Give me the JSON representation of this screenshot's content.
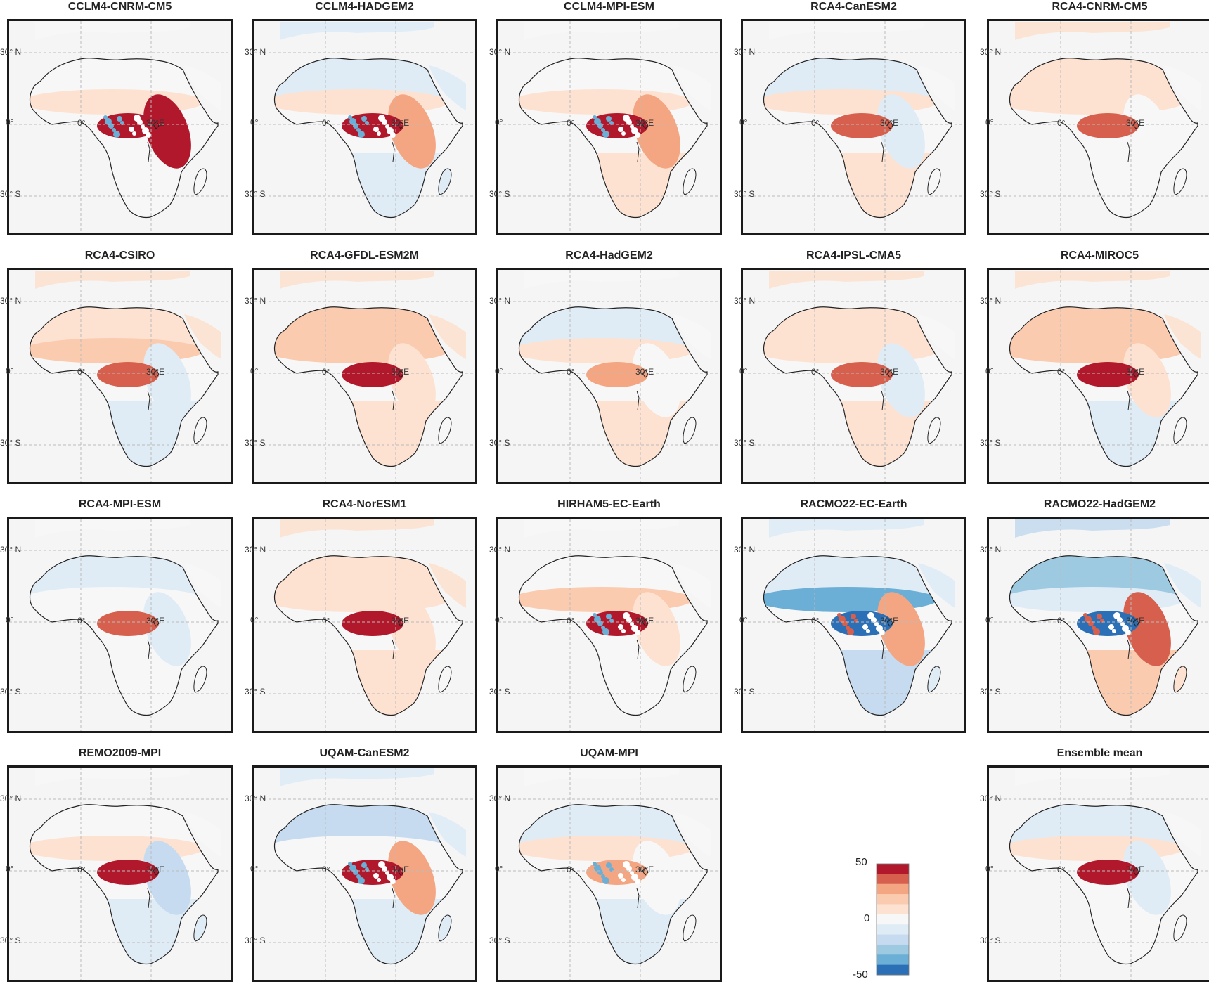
{
  "lat_labels": {
    "north": "30° N",
    "equator": "0°",
    "south": "30° S"
  },
  "lon_labels": {
    "zero": "0°",
    "thirty": "30°E"
  },
  "panels": [
    {
      "title": "CCLM4-CNRM-CM5",
      "row": 0,
      "col": 0,
      "pattern": {
        "sahel": 0.25,
        "congo": 0.95,
        "east": 0.9,
        "north": 0.1,
        "south": 0.0,
        "mixed": true
      }
    },
    {
      "title": "CCLM4-HADGEM2",
      "row": 0,
      "col": 1,
      "pattern": {
        "sahel": 0.25,
        "congo": 0.9,
        "east": 0.6,
        "north": -0.2,
        "south": -0.2,
        "mixed": true
      }
    },
    {
      "title": "CCLM4-MPI-ESM",
      "row": 0,
      "col": 2,
      "pattern": {
        "sahel": 0.25,
        "congo": 0.9,
        "east": 0.7,
        "north": 0.1,
        "south": 0.2,
        "mixed": true
      }
    },
    {
      "title": "RCA4-CanESM2",
      "row": 0,
      "col": 3,
      "pattern": {
        "sahel": 0.3,
        "congo": 0.8,
        "east": -0.2,
        "north": -0.1,
        "south": 0.15,
        "mixed": false
      }
    },
    {
      "title": "RCA4-CNRM-CM5",
      "row": 0,
      "col": 4,
      "pattern": {
        "sahel": 0.3,
        "congo": 0.8,
        "east": 0.1,
        "north": 0.2,
        "south": 0.0,
        "mixed": false
      }
    },
    {
      "title": "RCA4-CSIRO",
      "row": 1,
      "col": 0,
      "pattern": {
        "sahel": 0.4,
        "congo": 0.75,
        "east": -0.2,
        "north": 0.3,
        "south": -0.1,
        "mixed": false
      }
    },
    {
      "title": "RCA4-GFDL-ESM2M",
      "row": 1,
      "col": 1,
      "pattern": {
        "sahel": 0.4,
        "congo": 1.0,
        "east": 0.2,
        "north": 0.35,
        "south": 0.2,
        "mixed": false
      }
    },
    {
      "title": "RCA4-HadGEM2",
      "row": 1,
      "col": 2,
      "pattern": {
        "sahel": 0.2,
        "congo": 0.7,
        "east": 0.1,
        "north": -0.1,
        "south": 0.15,
        "mixed": false
      }
    },
    {
      "title": "RCA4-IPSL-CMA5",
      "row": 1,
      "col": 3,
      "pattern": {
        "sahel": 0.3,
        "congo": 0.8,
        "east": -0.15,
        "north": 0.2,
        "south": 0.15,
        "mixed": false
      }
    },
    {
      "title": "RCA4-MIROC5",
      "row": 1,
      "col": 4,
      "pattern": {
        "sahel": 0.5,
        "congo": 1.0,
        "east": 0.3,
        "north": 0.35,
        "south": -0.1,
        "mixed": false
      }
    },
    {
      "title": "RCA4-MPI-ESM",
      "row": 2,
      "col": 0,
      "pattern": {
        "sahel": 0.1,
        "congo": 0.75,
        "east": -0.1,
        "north": -0.1,
        "south": 0.0,
        "mixed": false
      }
    },
    {
      "title": "RCA4-NorESM1",
      "row": 2,
      "col": 1,
      "pattern": {
        "sahel": 0.3,
        "congo": 1.0,
        "east": 0.2,
        "north": 0.3,
        "south": 0.2,
        "mixed": false
      }
    },
    {
      "title": "HIRHAM5-EC-Earth",
      "row": 2,
      "col": 2,
      "pattern": {
        "sahel": 0.5,
        "congo": 0.9,
        "east": 0.2,
        "north": 0.0,
        "south": 0.1,
        "mixed": true
      }
    },
    {
      "title": "RACMO22-EC-Earth",
      "row": 2,
      "col": 3,
      "pattern": {
        "sahel": -0.7,
        "congo": -0.9,
        "east": 0.6,
        "north": -0.2,
        "south": -0.3,
        "mixed": true
      }
    },
    {
      "title": "RACMO22-HadGEM2",
      "row": 2,
      "col": 4,
      "pattern": {
        "sahel": -0.2,
        "congo": -1.0,
        "east": 0.8,
        "north": -0.5,
        "south": 0.4,
        "mixed": true
      }
    },
    {
      "title": "REMO2009-MPI",
      "row": 3,
      "col": 0,
      "pattern": {
        "sahel": 0.2,
        "congo": 0.9,
        "east": -0.4,
        "north": 0.1,
        "south": -0.2,
        "mixed": false
      }
    },
    {
      "title": "UQAM-CanESM2",
      "row": 3,
      "col": 1,
      "pattern": {
        "sahel": 0.1,
        "congo": 0.9,
        "east": 0.7,
        "north": -0.3,
        "south": -0.2,
        "mixed": true
      }
    },
    {
      "title": "UQAM-MPI",
      "row": 3,
      "col": 2,
      "pattern": {
        "sahel": 0.2,
        "congo": 0.7,
        "east": 0.1,
        "north": -0.15,
        "south": -0.1,
        "mixed": true
      }
    },
    {
      "title": "Ensemble mean",
      "row": 3,
      "col": 4,
      "pattern": {
        "sahel": 0.3,
        "congo": 1.0,
        "east": -0.2,
        "north": -0.1,
        "south": 0.1,
        "mixed": false
      }
    }
  ],
  "colorbar": {
    "max_label": "50",
    "mid_label": "0",
    "min_label": "-50",
    "colors": [
      "#b2182b",
      "#d6604d",
      "#f4a582",
      "#fbcbb0",
      "#fde2d2",
      "#f7f7f7",
      "#dfecf6",
      "#c6dbef",
      "#9ecae1",
      "#6baed6",
      "#2b6fb6"
    ]
  }
}
